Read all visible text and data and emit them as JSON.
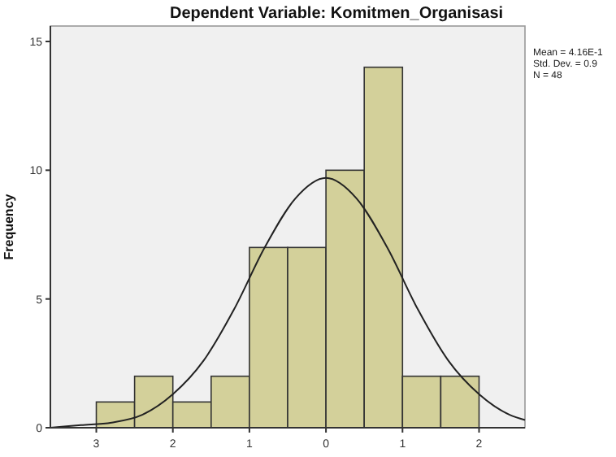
{
  "chart_data": {
    "type": "histogram",
    "title": "Dependent Variable: Komitmen_Organisasi",
    "ylabel": "Frequency",
    "bins": [
      -3,
      -2.5,
      -2,
      -1.5,
      -1,
      -0.5,
      0,
      0.5,
      1,
      1.5,
      2
    ],
    "values": [
      1,
      2,
      1,
      2,
      7,
      7,
      10,
      14,
      2,
      2
    ],
    "color": "#d3d09a",
    "xlim": [
      -3.6,
      2.6
    ],
    "ylim": [
      0,
      15.6
    ],
    "xticks": [
      {
        "value": -3,
        "label": "3"
      },
      {
        "value": -2,
        "label": "2"
      },
      {
        "value": -1,
        "label": "1"
      },
      0,
      1,
      2
    ],
    "yticks": [
      0,
      5,
      10,
      15
    ],
    "grid": false,
    "series": [
      {
        "type": "line",
        "color": "#222222",
        "x": [
          -3.6,
          -3.2,
          -2.8,
          -2.4,
          -2,
          -1.6,
          -1.2,
          -0.8,
          -0.4,
          0,
          0.4,
          0.8,
          1.2,
          1.6,
          2,
          2.4,
          2.6
        ],
        "values": [
          0,
          0.1,
          0.2,
          0.5,
          1.3,
          2.6,
          4.6,
          7,
          8.9,
          9.7,
          8.9,
          7,
          4.6,
          2.6,
          1.3,
          0.5,
          0.3
        ]
      }
    ],
    "annotations": [
      "Mean = 4.16E-1",
      "Std. Dev. = 0.9",
      "N = 48"
    ]
  }
}
